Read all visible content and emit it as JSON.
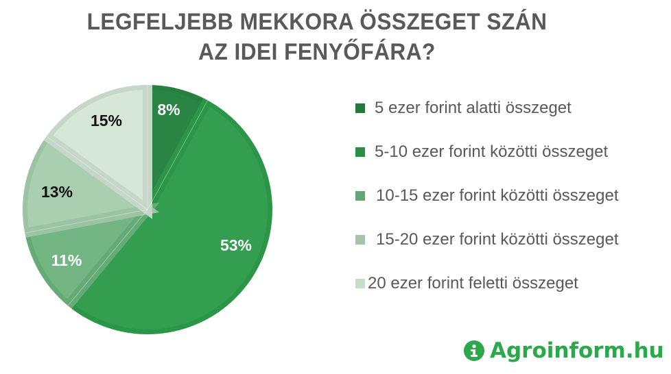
{
  "title": {
    "line1": "LEGFELJEBB MEKKORA ÖSSZEGET SZÁN",
    "line2": "AZ IDEI FENYŐFÁRA?"
  },
  "chart_data": {
    "type": "pie",
    "title": "LEGFELJEBB MEKKORA ÖSSZEGET SZÁN AZ IDEI FENYŐFÁRA?",
    "categories": [
      "5 ezer forint alatti összeget",
      "5-10 ezer forint közötti összeget",
      "10-15 ezer forint közötti összeget",
      "15-20 ezer forint közötti összeget",
      "20 ezer forint feletti összeget"
    ],
    "values": [
      8,
      53,
      11,
      13,
      15
    ],
    "labels": [
      "8%",
      "53%",
      "11%",
      "13%",
      "15%"
    ],
    "colors": [
      "#2a8443",
      "#339e50",
      "#73b684",
      "#a9cfb0",
      "#d6e7d8"
    ],
    "border_colors": [
      "#26803f",
      "#2b9648",
      "#65ab77",
      "#9cc4a4",
      "#c6d6c8"
    ],
    "label_colors": [
      "#ffffff",
      "#ffffff",
      "#ffffff",
      "#111111",
      "#111111"
    ],
    "start_angle": "12 o'clock",
    "direction": "clockwise",
    "legend_position": "right"
  },
  "legend": {
    "items": [
      {
        "label": "5 ezer forint alatti összeget",
        "color": "#24783a"
      },
      {
        "label": "5-10 ezer forint közötti összeget",
        "color": "#2b8e46"
      },
      {
        "label": "10-15 ezer forint közötti összeget",
        "color": "#65a677"
      },
      {
        "label": "15-20 ezer forint közötti összeget",
        "color": "#a4c5ab"
      },
      {
        "label": "20 ezer forint feletti összeget",
        "color": "#c9dccb"
      }
    ]
  },
  "logo": {
    "icon": "info-i-icon",
    "text": "Agroinform.hu",
    "color": "#2aa84a"
  }
}
